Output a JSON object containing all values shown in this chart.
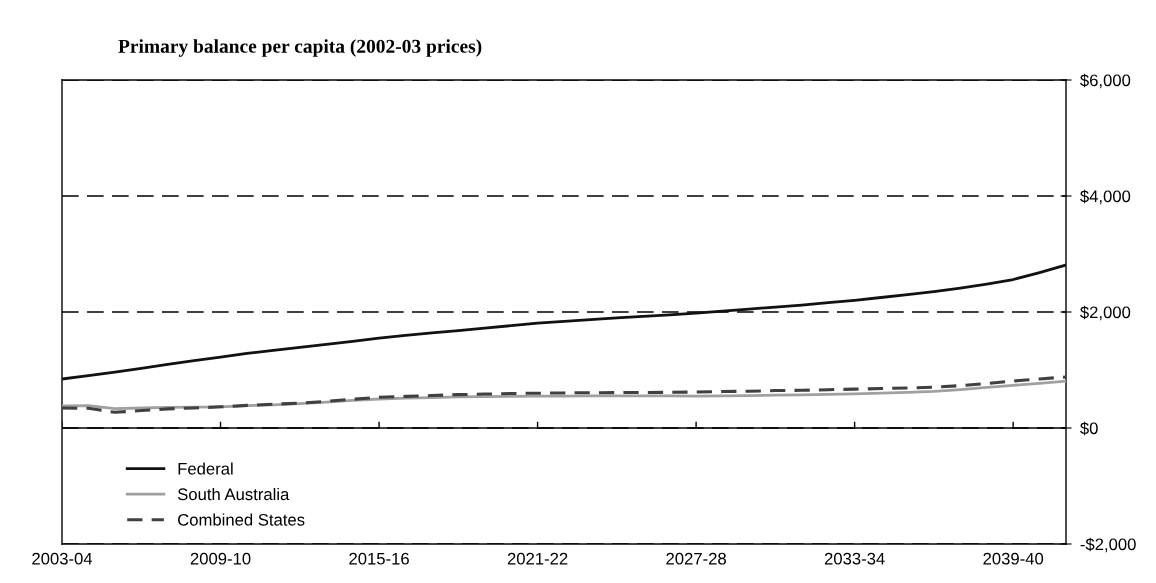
{
  "chart_data": {
    "type": "line",
    "title": "Primary balance per capita (2002-03 prices)",
    "categories": [
      "2003-04",
      null,
      null,
      null,
      null,
      null,
      "2009-10",
      null,
      null,
      null,
      null,
      null,
      "2015-16",
      null,
      null,
      null,
      null,
      null,
      "2021-22",
      null,
      null,
      null,
      null,
      null,
      "2027-28",
      null,
      null,
      null,
      null,
      null,
      "2033-34",
      null,
      null,
      null,
      null,
      null,
      "2039-40",
      null,
      null
    ],
    "series": [
      {
        "name": "Federal",
        "color": "#111111",
        "line_style": "solid",
        "values": [
          845,
          905,
          965,
          1030,
          1095,
          1160,
          1224,
          1285,
          1340,
          1390,
          1440,
          1495,
          1550,
          1595,
          1640,
          1680,
          1720,
          1765,
          1810,
          1840,
          1870,
          1900,
          1925,
          1950,
          1980,
          2015,
          2050,
          2085,
          2120,
          2160,
          2200,
          2250,
          2300,
          2350,
          2410,
          2480,
          2560,
          2680,
          2810
        ]
      },
      {
        "name": "South Australia",
        "color": "#a0a0a0",
        "line_style": "solid",
        "values": [
          380,
          385,
          335,
          345,
          355,
          360,
          365,
          385,
          400,
          420,
          445,
          475,
          500,
          515,
          525,
          535,
          540,
          545,
          550,
          550,
          552,
          552,
          552,
          552,
          550,
          555,
          560,
          565,
          570,
          580,
          590,
          600,
          615,
          630,
          660,
          700,
          735,
          770,
          810
        ]
      },
      {
        "name": "Combined States",
        "color": "#404040",
        "line_style": "dashed",
        "values": [
          345,
          340,
          270,
          300,
          330,
          345,
          365,
          390,
          410,
          430,
          460,
          495,
          530,
          545,
          560,
          575,
          585,
          595,
          600,
          605,
          608,
          610,
          612,
          615,
          620,
          628,
          635,
          645,
          650,
          660,
          670,
          680,
          690,
          705,
          730,
          765,
          810,
          845,
          880
        ]
      }
    ],
    "ylim": [
      -2000,
      6000
    ],
    "yticks": [
      {
        "value": -2000,
        "label": "-$2,000"
      },
      {
        "value": 0,
        "label": "$0"
      },
      {
        "value": 2000,
        "label": "$2,000"
      },
      {
        "value": 4000,
        "label": "$4,000"
      },
      {
        "value": 6000,
        "label": "$6,000"
      }
    ],
    "ref_lines": [
      {
        "axis": "y",
        "value": 0,
        "label": null,
        "color": "#000000",
        "line_style": "solid"
      }
    ],
    "grid": "y",
    "legend": "bottom left",
    "marker": "none"
  }
}
